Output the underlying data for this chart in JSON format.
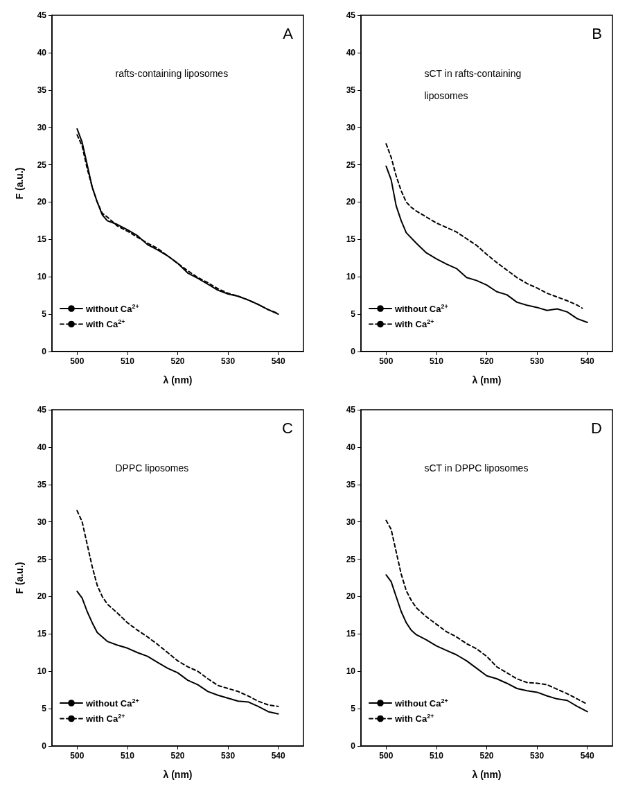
{
  "chart_data": [
    {
      "type": "line",
      "title": "A",
      "annotations": [
        "rafts-containing liposomes"
      ],
      "xlabel": "λ (nm)",
      "ylabel": "F (a.u.)",
      "xlim": [
        495,
        545
      ],
      "xticks": [
        500,
        510,
        520,
        530,
        540
      ],
      "ylim": [
        0,
        45
      ],
      "yticks": [
        0,
        5,
        10,
        15,
        20,
        25,
        30,
        35,
        40,
        45
      ],
      "legend": "bottom left",
      "grid": false,
      "marker": "none",
      "series": [
        {
          "name": "without Ca$^{2+}$",
          "color": "#000000",
          "line_style": "solid",
          "x": [
            500,
            501,
            502,
            503,
            504,
            505,
            506,
            508,
            510,
            512,
            514,
            516,
            518,
            520,
            522,
            524,
            526,
            528,
            530,
            532,
            534,
            536,
            538,
            540
          ],
          "values": [
            29.8,
            28,
            25,
            22,
            20,
            18.3,
            17.5,
            17,
            16.3,
            15.5,
            14.3,
            13.6,
            12.8,
            11.8,
            10.5,
            9.8,
            9.0,
            8.2,
            7.7,
            7.4,
            6.9,
            6.3,
            5.6,
            5.0
          ]
        },
        {
          "name": "with Ca$^{2+}$",
          "color": "#000000",
          "line_style": "dashed",
          "x": [
            500,
            501,
            502,
            503,
            504,
            505,
            506,
            508,
            510,
            512,
            514,
            516,
            518,
            520,
            522,
            524,
            526,
            528,
            530,
            532,
            534,
            536,
            538,
            540
          ],
          "values": [
            29,
            27.5,
            24.5,
            22,
            20,
            18.5,
            18,
            16.8,
            16.1,
            15.3,
            14.5,
            13.8,
            12.8,
            11.8,
            10.8,
            9.9,
            9.2,
            8.4,
            7.8,
            7.4,
            6.9,
            6.3,
            5.6,
            5.1
          ]
        }
      ]
    },
    {
      "type": "line",
      "title": "B",
      "annotations": [
        "sCT in rafts-containing liposomes"
      ],
      "xlabel": "λ (nm)",
      "xlim": [
        495,
        545
      ],
      "xticks": [
        500,
        510,
        520,
        530,
        540
      ],
      "ylim": [
        0,
        45
      ],
      "yticks": [
        0,
        5,
        10,
        15,
        20,
        25,
        30,
        35,
        40,
        45
      ],
      "legend": "bottom left",
      "grid": false,
      "marker": "none",
      "series": [
        {
          "name": "without Ca$^{2+}$",
          "color": "#000000",
          "line_style": "solid",
          "x": [
            500,
            501,
            502,
            503,
            504,
            506,
            508,
            510,
            512,
            514,
            516,
            518,
            520,
            522,
            524,
            526,
            528,
            530,
            532,
            534,
            536,
            538,
            540
          ],
          "values": [
            24.8,
            23,
            19.5,
            17.5,
            15.9,
            14.5,
            13.2,
            12.4,
            11.7,
            11.1,
            9.9,
            9.5,
            8.9,
            8.0,
            7.6,
            6.6,
            6.2,
            5.9,
            5.5,
            5.7,
            5.3,
            4.4,
            3.9
          ]
        },
        {
          "name": "with Ca$^{2+}$",
          "color": "#000000",
          "line_style": "dashed",
          "x": [
            500,
            501,
            502,
            503,
            504,
            505,
            506,
            508,
            510,
            512,
            514,
            516,
            518,
            520,
            522,
            524,
            526,
            528,
            530,
            532,
            534,
            536,
            538,
            539
          ],
          "values": [
            27.8,
            26,
            23.5,
            21.5,
            20,
            19.3,
            18.8,
            18.0,
            17.2,
            16.6,
            16.0,
            15.1,
            14.2,
            13.0,
            11.9,
            10.9,
            9.9,
            9.1,
            8.5,
            7.8,
            7.3,
            6.8,
            6.2,
            5.8
          ]
        }
      ]
    },
    {
      "type": "line",
      "title": "C",
      "annotations": [
        "DPPC liposomes"
      ],
      "xlabel": "λ (nm)",
      "ylabel": "F (a.u.)",
      "xlim": [
        495,
        545
      ],
      "xticks": [
        500,
        510,
        520,
        530,
        540
      ],
      "ylim": [
        0,
        45
      ],
      "yticks": [
        0,
        5,
        10,
        15,
        20,
        25,
        30,
        35,
        40,
        45
      ],
      "legend": "bottom left",
      "grid": false,
      "marker": "none",
      "series": [
        {
          "name": "without Ca$^{2+}$",
          "color": "#000000",
          "line_style": "solid",
          "x": [
            500,
            501,
            502,
            503,
            504,
            506,
            508,
            510,
            512,
            514,
            516,
            518,
            520,
            522,
            524,
            526,
            528,
            530,
            532,
            534,
            536,
            538,
            540
          ],
          "values": [
            20.7,
            19.8,
            18,
            16.5,
            15.2,
            14.0,
            13.5,
            13.1,
            12.5,
            12.0,
            11.2,
            10.4,
            9.8,
            8.8,
            8.2,
            7.3,
            6.8,
            6.4,
            6.0,
            5.9,
            5.3,
            4.6,
            4.3
          ]
        },
        {
          "name": "with Ca$^{2+}$",
          "color": "#000000",
          "line_style": "dashed",
          "x": [
            500,
            501,
            502,
            503,
            504,
            505,
            506,
            508,
            510,
            512,
            514,
            516,
            518,
            520,
            522,
            524,
            526,
            528,
            530,
            532,
            534,
            536,
            538,
            540
          ],
          "values": [
            31.5,
            30,
            27,
            24,
            21.5,
            20,
            19,
            17.8,
            16.5,
            15.5,
            14.6,
            13.6,
            12.5,
            11.4,
            10.6,
            10.0,
            9.0,
            8.1,
            7.7,
            7.3,
            6.7,
            6.0,
            5.5,
            5.3
          ]
        }
      ]
    },
    {
      "type": "line",
      "title": "D",
      "annotations": [
        "sCT in DPPC liposomes"
      ],
      "xlabel": "λ (nm)",
      "xlim": [
        495,
        545
      ],
      "xticks": [
        500,
        510,
        520,
        530,
        540
      ],
      "ylim": [
        0,
        45
      ],
      "yticks": [
        0,
        5,
        10,
        15,
        20,
        25,
        30,
        35,
        40,
        45
      ],
      "legend": "bottom left",
      "grid": false,
      "marker": "none",
      "series": [
        {
          "name": "without Ca$^{2+}$",
          "color": "#000000",
          "line_style": "solid",
          "x": [
            500,
            501,
            502,
            503,
            504,
            505,
            506,
            508,
            510,
            512,
            514,
            516,
            518,
            520,
            522,
            524,
            526,
            528,
            530,
            532,
            534,
            536,
            538,
            540
          ],
          "values": [
            22.9,
            22,
            20,
            18,
            16.5,
            15.5,
            14.9,
            14.2,
            13.4,
            12.8,
            12.2,
            11.4,
            10.4,
            9.4,
            9.0,
            8.4,
            7.7,
            7.4,
            7.2,
            6.7,
            6.3,
            6.1,
            5.3,
            4.6
          ]
        },
        {
          "name": "with Ca$^{2+}$",
          "color": "#000000",
          "line_style": "dashed",
          "x": [
            500,
            501,
            502,
            503,
            504,
            505,
            506,
            508,
            510,
            512,
            514,
            516,
            518,
            520,
            522,
            524,
            526,
            528,
            530,
            532,
            534,
            536,
            538,
            540
          ],
          "values": [
            30.2,
            29,
            26,
            23,
            20.8,
            19.5,
            18.5,
            17.3,
            16.3,
            15.3,
            14.6,
            13.7,
            13.0,
            12.0,
            10.6,
            9.8,
            9.0,
            8.5,
            8.4,
            8.2,
            7.6,
            7.0,
            6.3,
            5.6
          ]
        }
      ]
    }
  ]
}
